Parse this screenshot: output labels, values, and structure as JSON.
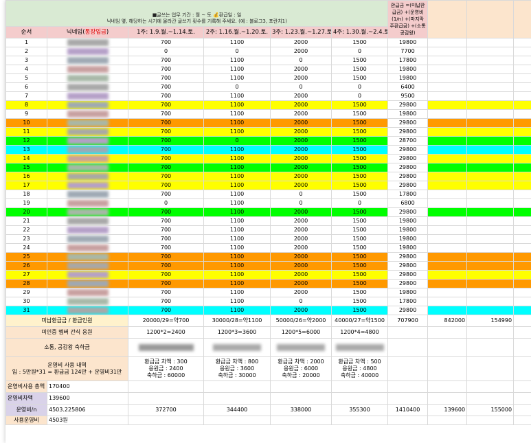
{
  "header": {
    "period_line": "■글쓰는 업무 기간 : 월 ~ 토 💰환급일 : 일",
    "instruction_line": "닉네임 옆, 해당하는 시기에 올라간 글쓰기 횟수를 기록해 주세요. (예 : 블로그3, 포란치1)",
    "side_note": "환급금 =(미납환급금) +(운영비(1/n) +(마지막주환급금) +(소통공감왕)"
  },
  "columns": {
    "order": "순서",
    "nickname_prefix": "닉네임(",
    "nickname_red": "통장입금",
    "nickname_suffix": ")",
    "week1": "1주: 1.9.월.~1.14.토.",
    "week2": "2주: 1.16.월.~1.20.토.",
    "week3": "3주: 1.23.월.~1.27.토.",
    "week4": "4주: 1.30.월.~2.4.토."
  },
  "rows": [
    {
      "n": "1",
      "w1": "700",
      "w2": "1100",
      "w3": "2000",
      "w4": "1500",
      "total": "19800",
      "color": ""
    },
    {
      "n": "2",
      "w1": "0",
      "w2": "0",
      "w3": "2000",
      "w4": "0",
      "total": "7700",
      "color": ""
    },
    {
      "n": "3",
      "w1": "700",
      "w2": "1100",
      "w3": "0",
      "w4": "1500",
      "total": "17800",
      "color": ""
    },
    {
      "n": "4",
      "w1": "700",
      "w2": "1100",
      "w3": "2000",
      "w4": "1500",
      "total": "19800",
      "color": ""
    },
    {
      "n": "5",
      "w1": "700",
      "w2": "1100",
      "w3": "2000",
      "w4": "1500",
      "total": "19800",
      "color": ""
    },
    {
      "n": "6",
      "w1": "700",
      "w2": "0",
      "w3": "0",
      "w4": "0",
      "total": "6400",
      "color": ""
    },
    {
      "n": "7",
      "w1": "700",
      "w2": "1100",
      "w3": "2000",
      "w4": "0",
      "total": "9500",
      "color": ""
    },
    {
      "n": "8",
      "w1": "700",
      "w2": "1100",
      "w3": "2000",
      "w4": "1500",
      "total": "29800",
      "color": "yellow"
    },
    {
      "n": "9",
      "w1": "700",
      "w2": "1100",
      "w3": "2000",
      "w4": "1500",
      "total": "19800",
      "color": ""
    },
    {
      "n": "10",
      "w1": "700",
      "w2": "1100",
      "w3": "2000",
      "w4": "1500",
      "total": "29800",
      "color": "orange"
    },
    {
      "n": "11",
      "w1": "700",
      "w2": "1100",
      "w3": "2000",
      "w4": "1500",
      "total": "29800",
      "color": "yellow"
    },
    {
      "n": "12",
      "w1": "700",
      "w2": "0",
      "w3": "2000",
      "w4": "1500",
      "total": "28700",
      "color": "green"
    },
    {
      "n": "13",
      "w1": "700",
      "w2": "1100",
      "w3": "2000",
      "w4": "1500",
      "total": "29800",
      "color": "cyan"
    },
    {
      "n": "14",
      "w1": "700",
      "w2": "1100",
      "w3": "2000",
      "w4": "1500",
      "total": "29800",
      "color": "yellow"
    },
    {
      "n": "15",
      "w1": "700",
      "w2": "1100",
      "w3": "2000",
      "w4": "1500",
      "total": "29800",
      "color": "green"
    },
    {
      "n": "16",
      "w1": "700",
      "w2": "1100",
      "w3": "2000",
      "w4": "1500",
      "total": "29800",
      "color": "yellow"
    },
    {
      "n": "17",
      "w1": "700",
      "w2": "1100",
      "w3": "2000",
      "w4": "1500",
      "total": "29800",
      "color": "yellow"
    },
    {
      "n": "18",
      "w1": "700",
      "w2": "1100",
      "w3": "0",
      "w4": "1500",
      "total": "17800",
      "color": ""
    },
    {
      "n": "19",
      "w1": "0",
      "w2": "1100",
      "w3": "0",
      "w4": "0",
      "total": "6800",
      "color": ""
    },
    {
      "n": "20",
      "w1": "700",
      "w2": "1100",
      "w3": "2000",
      "w4": "1500",
      "total": "29800",
      "color": "green"
    },
    {
      "n": "21",
      "w1": "700",
      "w2": "1100",
      "w3": "2000",
      "w4": "1500",
      "total": "19800",
      "color": ""
    },
    {
      "n": "22",
      "w1": "700",
      "w2": "1100",
      "w3": "2000",
      "w4": "1500",
      "total": "19800",
      "color": ""
    },
    {
      "n": "23",
      "w1": "700",
      "w2": "1100",
      "w3": "2000",
      "w4": "1500",
      "total": "19800",
      "color": ""
    },
    {
      "n": "24",
      "w1": "700",
      "w2": "1100",
      "w3": "2000",
      "w4": "1500",
      "total": "19800",
      "color": ""
    },
    {
      "n": "25",
      "w1": "700",
      "w2": "1100",
      "w3": "2000",
      "w4": "1500",
      "total": "29800",
      "color": "orange"
    },
    {
      "n": "26",
      "w1": "700",
      "w2": "1100",
      "w3": "2000",
      "w4": "1500",
      "total": "29800",
      "color": "orange"
    },
    {
      "n": "27",
      "w1": "700",
      "w2": "1100",
      "w3": "2000",
      "w4": "1500",
      "total": "29800",
      "color": "yellow"
    },
    {
      "n": "28",
      "w1": "700",
      "w2": "1100",
      "w3": "2000",
      "w4": "1500",
      "total": "29800",
      "color": "orange"
    },
    {
      "n": "29",
      "w1": "700",
      "w2": "1100",
      "w3": "2000",
      "w4": "1500",
      "total": "19800",
      "color": ""
    },
    {
      "n": "30",
      "w1": "700",
      "w2": "1100",
      "w3": "0",
      "w4": "1500",
      "total": "17800",
      "color": ""
    },
    {
      "n": "31",
      "w1": "700",
      "w2": "1100",
      "w3": "2000",
      "w4": "1500",
      "total": "29800",
      "color": "cyan"
    }
  ],
  "summary": {
    "unpaid_label": "미납환급금 / 환급인원",
    "unpaid_w1": "20000/29=약700",
    "unpaid_w2": "30000/28=약1100",
    "unpaid_w3": "50000/26=약2000",
    "unpaid_w4": "40000/27=약1500",
    "unpaid_total": "707900",
    "unpaid_extra1": "842000",
    "unpaid_extra2": "154990",
    "snack_label": "미인증 멤버 간식 응원",
    "snack_w1": "1200*2=2400",
    "snack_w2": "1200*3=3600",
    "snack_w3": "1200*5=6000",
    "snack_w4": "1200*4=4800",
    "comm_label": "소통, 공감왕 축하금",
    "ops_title": "운영비 사용 내역",
    "ops_formula": "입 : 5만원*31 = 환급금 124만 + 운영비31만",
    "w1_detail": [
      "환급금 차액 : 300",
      "응원금 : 2400",
      "축하금 : 60000"
    ],
    "w2_detail": [
      "환급금 차액 : 800",
      "응원금 : 3600",
      "축하금 : 30000"
    ],
    "w3_detail": [
      "환급금 차액 : 2000",
      "응원금 : 6000",
      "축하금 : 20000"
    ],
    "w4_detail": [
      "환급금 차액 : 500",
      "응원금 : 4800",
      "축하금 : 40000"
    ],
    "ops_used_label": "운영비사용 총액",
    "ops_used_value": "170400",
    "ops_balance_label": "운영비차액",
    "ops_balance_value": "139600",
    "ops_per_label": "운영비/n",
    "ops_per_value": "4503.225806",
    "ops_per_w1": "372700",
    "ops_per_w2": "344400",
    "ops_per_w3": "338000",
    "ops_per_w4": "355300",
    "ops_per_total": "1410400",
    "ops_per_extra1": "139600",
    "ops_per_extra2": "155000",
    "last_label": "사용운영비",
    "last_value": "4503원"
  },
  "colors": {
    "yellow": "#ffff00",
    "orange": "#ff9900",
    "green": "#00ff00",
    "cyan": "#00ffff",
    "header_green": "#d9ead3",
    "header_pink": "#f4cccc"
  }
}
